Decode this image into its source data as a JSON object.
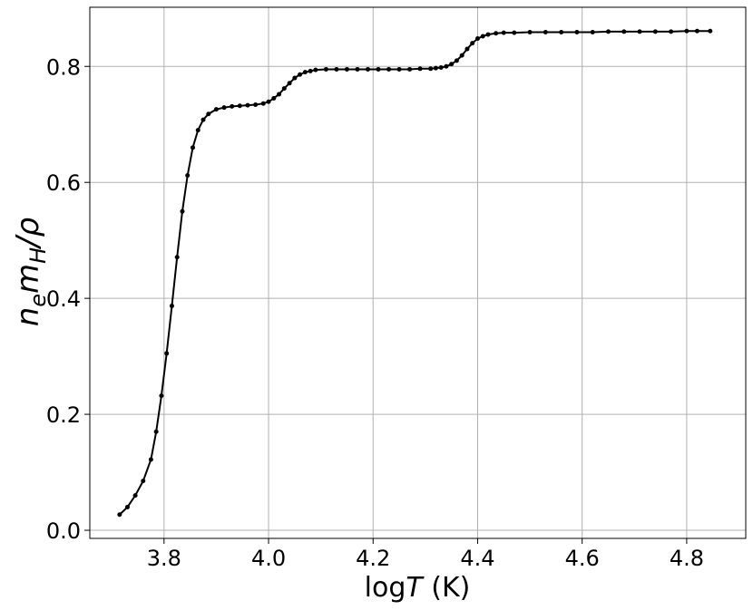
{
  "chart_data": {
    "type": "line",
    "xlabel": [
      "log",
      "T",
      " (K)"
    ],
    "ylabel": [
      "n",
      "e",
      "m",
      "H",
      "/ρ"
    ],
    "x": [
      3.715,
      3.73,
      3.745,
      3.76,
      3.775,
      3.785,
      3.795,
      3.805,
      3.815,
      3.825,
      3.835,
      3.845,
      3.855,
      3.865,
      3.875,
      3.885,
      3.9,
      3.915,
      3.93,
      3.945,
      3.96,
      3.975,
      3.99,
      4.0,
      4.01,
      4.02,
      4.03,
      4.04,
      4.05,
      4.06,
      4.07,
      4.08,
      4.09,
      4.11,
      4.13,
      4.15,
      4.17,
      4.19,
      4.21,
      4.23,
      4.25,
      4.27,
      4.29,
      4.31,
      4.32,
      4.33,
      4.34,
      4.35,
      4.36,
      4.37,
      4.38,
      4.39,
      4.4,
      4.41,
      4.42,
      4.435,
      4.45,
      4.47,
      4.5,
      4.53,
      4.56,
      4.59,
      4.62,
      4.65,
      4.68,
      4.71,
      4.74,
      4.77,
      4.8,
      4.82,
      4.845
    ],
    "series": [
      {
        "color": "#000000",
        "values": [
          0.027,
          0.04,
          0.06,
          0.085,
          0.122,
          0.17,
          0.232,
          0.305,
          0.387,
          0.471,
          0.55,
          0.612,
          0.66,
          0.69,
          0.708,
          0.718,
          0.726,
          0.729,
          0.731,
          0.732,
          0.733,
          0.734,
          0.736,
          0.739,
          0.745,
          0.752,
          0.762,
          0.771,
          0.78,
          0.786,
          0.79,
          0.792,
          0.794,
          0.795,
          0.795,
          0.795,
          0.795,
          0.795,
          0.795,
          0.795,
          0.795,
          0.795,
          0.796,
          0.796,
          0.797,
          0.798,
          0.8,
          0.804,
          0.81,
          0.819,
          0.83,
          0.84,
          0.848,
          0.852,
          0.855,
          0.857,
          0.858,
          0.858,
          0.859,
          0.859,
          0.859,
          0.859,
          0.859,
          0.86,
          0.86,
          0.86,
          0.86,
          0.86,
          0.861,
          0.861,
          0.861
        ]
      }
    ],
    "xlim": [
      3.658,
      4.913
    ],
    "ylim": [
      -0.014,
      0.902
    ],
    "xticks": [
      3.8,
      {
        "value": 4,
        "label": "4.0"
      },
      4.2,
      4.4,
      4.6,
      4.8
    ],
    "yticks": [
      {
        "value": 0,
        "label": "0.0"
      },
      0.2,
      0.4,
      0.6,
      0.8
    ],
    "grid": true
  }
}
